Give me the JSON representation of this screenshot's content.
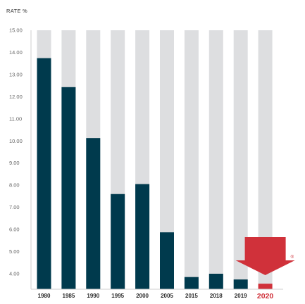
{
  "chart_data": {
    "type": "bar",
    "title": "",
    "xlabel": "",
    "ylabel": "RATE %",
    "categories": [
      "1980",
      "1985",
      "1990",
      "1995",
      "2000",
      "2005",
      "2015",
      "2018",
      "2019",
      "2020"
    ],
    "values": [
      13.74,
      12.43,
      10.13,
      7.6,
      8.05,
      5.87,
      3.85,
      4.0,
      3.74,
      3.55
    ],
    "ylim": [
      3.3,
      15.0
    ],
    "yticks": [
      "15.00",
      "14.00",
      "13.00",
      "12.00",
      "11.00",
      "10.00",
      "9.00",
      "8.00",
      "7.00",
      "6.00",
      "5.00",
      "4.00"
    ],
    "grid": false,
    "legend": "none",
    "highlight_category": "2020",
    "annotation": "down-arrow-icon",
    "registered_mark": "®",
    "colors": {
      "bar": "#003a4d",
      "background_bar": "#dddee0",
      "highlight": "#d0313a",
      "arrow": "#d0313a"
    }
  }
}
